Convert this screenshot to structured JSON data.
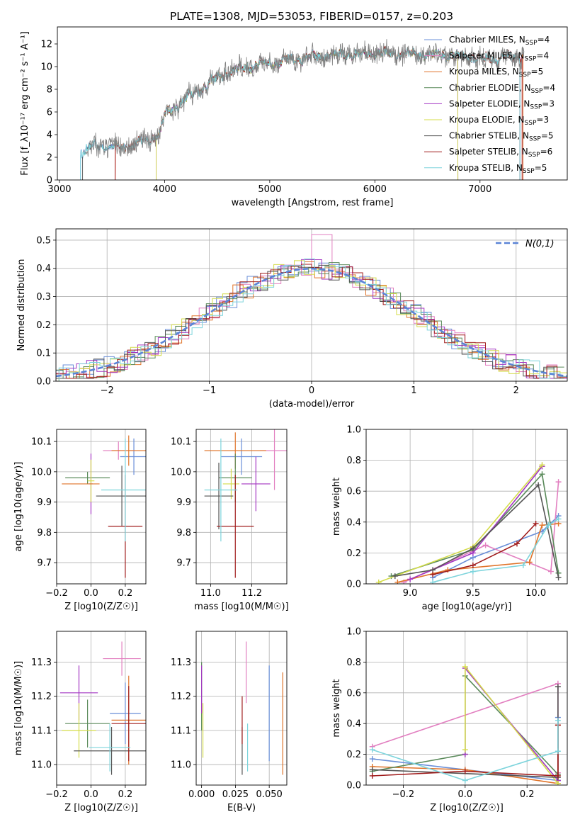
{
  "figure": {
    "title": "PLATE=1308, MJD=53053, FIBERID=0157, z=0.203"
  },
  "colors": {
    "Chabrier MILES": "#6a8fd8",
    "Salpeter MILES": "#e27fc0",
    "Kroupa MILES": "#e0742a",
    "Chabrier ELODIE": "#5a8a5a",
    "Salpeter ELODIE": "#a336c2",
    "Kroupa ELODIE": "#d4dc4a",
    "Chabrier STELIB": "#555555",
    "Salpeter STELIB": "#a01c1c",
    "Kroupa STELIB": "#7dd4dc",
    "data": "#808080"
  },
  "chart_data": [
    {
      "id": "spectrum",
      "type": "line",
      "xlabel": "wavelength [Angstrom, rest frame]",
      "ylabel": "Flux [f_λ10⁻¹⁷ erg cm⁻² s⁻¹ A⁻¹]",
      "xlim": [
        2980,
        7830
      ],
      "ylim": [
        0,
        13.5
      ],
      "xticks": [
        3000,
        4000,
        5000,
        6000,
        7000
      ],
      "yticks": [
        0,
        2,
        4,
        6,
        8,
        10,
        12
      ],
      "grid": false,
      "legend_position": "right",
      "legend": [
        {
          "label": "Chabrier MILES, N",
          "sub": "SSP",
          "tail": "=4"
        },
        {
          "label": "Salpeter MILES, N",
          "sub": "SSP",
          "tail": "=4"
        },
        {
          "label": "Kroupa MILES, N",
          "sub": "SSP",
          "tail": "=5"
        },
        {
          "label": "Chabrier ELODIE, N",
          "sub": "SSP",
          "tail": "=4"
        },
        {
          "label": "Salpeter ELODIE, N",
          "sub": "SSP",
          "tail": "=3"
        },
        {
          "label": "Kroupa ELODIE, N",
          "sub": "SSP",
          "tail": "=3"
        },
        {
          "label": "Chabrier STELIB, N",
          "sub": "SSP",
          "tail": "=5"
        },
        {
          "label": "Salpeter STELIB, N",
          "sub": "SSP",
          "tail": "=6"
        },
        {
          "label": "Kroupa STELIB, N",
          "sub": "SSP",
          "tail": "=5"
        }
      ],
      "model_ranges": [
        [
          3200,
          7380
        ],
        [
          3530,
          7410
        ],
        [
          3530,
          7410
        ],
        [
          3920,
          6790
        ],
        [
          3920,
          6790
        ],
        [
          3920,
          6790
        ],
        [
          3220,
          7380
        ],
        [
          3530,
          7400
        ],
        [
          3200,
          7380
        ]
      ],
      "continuum": {
        "x": [
          3200,
          3300,
          3400,
          3600,
          3800,
          3950,
          4000,
          4200,
          4400,
          4600,
          4800,
          5000,
          5200,
          5500,
          5800,
          6000,
          6300,
          6600,
          7000,
          7400
        ],
        "y": [
          2.4,
          2.9,
          3.0,
          2.9,
          3.4,
          4.0,
          5.7,
          7.2,
          8.4,
          9.5,
          10.0,
          10.3,
          10.6,
          10.9,
          11.1,
          11.2,
          11.1,
          11.1,
          10.7,
          10.8
        ]
      }
    },
    {
      "id": "residuals",
      "type": "histogram",
      "xlabel": "(data-model)/error",
      "ylabel": "Normed distribution",
      "xlim": [
        -2.5,
        2.5
      ],
      "ylim": [
        0,
        0.54
      ],
      "xticks": [
        -2,
        -1,
        0,
        1,
        2
      ],
      "yticks": [
        0.0,
        0.1,
        0.2,
        0.3,
        0.4,
        0.5
      ],
      "grid": true,
      "bin_width": 0.1,
      "reference_label": "N(0,1)",
      "peaks": [
        0.52,
        0.455,
        0.45,
        0.42
      ]
    },
    {
      "id": "age_vs_Z",
      "type": "errorbar",
      "xlabel": "Z [log10(Z/Z☉)]",
      "ylabel": "age [log10(age/yr)]",
      "xlim": [
        -0.2,
        0.32
      ],
      "ylim": [
        9.63,
        10.14
      ],
      "xticks": [
        -0.2,
        0.0,
        0.2
      ],
      "yticks": [
        9.7,
        9.8,
        9.9,
        10.0,
        10.1
      ],
      "grid": true,
      "points": [
        {
          "series": "Chabrier MILES",
          "x": 0.25,
          "xerr": 0.08,
          "y": 10.05,
          "yerr": 0.06
        },
        {
          "series": "Salpeter MILES",
          "x": 0.16,
          "xerr": 0.09,
          "y": 10.07,
          "yerr": 0.03
        },
        {
          "series": "Kroupa MILES",
          "x": 0.22,
          "xerr": 0.1,
          "y": 10.07,
          "yerr": 0.05
        },
        {
          "series": "Chabrier ELODIE",
          "x": -0.02,
          "xerr": 0.13,
          "y": 9.98,
          "yerr": 0.02
        },
        {
          "series": "Salpeter ELODIE",
          "x": 0.0,
          "xerr": 0.01,
          "y": 9.96,
          "yerr": 0.1
        },
        {
          "series": "Kroupa ELODIE",
          "x": 0.0,
          "xerr": 0.02,
          "y": 9.97,
          "yerr": 0.07
        },
        {
          "series": "Chabrier STELIB",
          "x": 0.18,
          "xerr": 0.15,
          "y": 9.92,
          "yerr": 0.1
        },
        {
          "series": "Salpeter STELIB",
          "x": 0.2,
          "xerr": 0.1,
          "y": 9.82,
          "yerr": 0.17
        },
        {
          "series": "Kroupa STELIB",
          "x": 0.2,
          "xerr": 0.14,
          "y": 9.94,
          "yerr": 0.17
        },
        {
          "series": "Kroupa MILES",
          "x": -0.06,
          "xerr": 0.11,
          "y": 9.96,
          "yerr": 0.0
        }
      ]
    },
    {
      "id": "age_vs_mass",
      "type": "errorbar",
      "xlabel": "mass [log10(M/M☉)]",
      "ylabel": "",
      "xlim": [
        10.93,
        11.37
      ],
      "ylim": [
        9.63,
        10.14
      ],
      "xticks": [
        11.0,
        11.2
      ],
      "yticks": [
        9.7,
        9.8,
        9.9,
        10.0,
        10.1
      ],
      "grid": true,
      "points": [
        {
          "series": "Chabrier MILES",
          "x": 11.15,
          "xerr": 0.1,
          "y": 10.05,
          "yerr": 0.06
        },
        {
          "series": "Salpeter MILES",
          "x": 11.31,
          "xerr": 0.07,
          "y": 10.07,
          "yerr": 0.13
        },
        {
          "series": "Kroupa MILES",
          "x": 11.12,
          "xerr": 0.15,
          "y": 10.07,
          "yerr": 0.06
        },
        {
          "series": "Chabrier ELODIE",
          "x": 11.12,
          "xerr": 0.08,
          "y": 9.98,
          "yerr": 0.08
        },
        {
          "series": "Salpeter ELODIE",
          "x": 11.22,
          "xerr": 0.07,
          "y": 9.96,
          "yerr": 0.09
        },
        {
          "series": "Kroupa ELODIE",
          "x": 11.1,
          "xerr": 0.04,
          "y": 9.96,
          "yerr": 0.05
        },
        {
          "series": "Chabrier STELIB",
          "x": 11.04,
          "xerr": 0.07,
          "y": 9.92,
          "yerr": 0.11
        },
        {
          "series": "Salpeter STELIB",
          "x": 11.12,
          "xerr": 0.09,
          "y": 9.82,
          "yerr": 0.17
        },
        {
          "series": "Kroupa STELIB",
          "x": 11.05,
          "xerr": 0.08,
          "y": 9.94,
          "yerr": 0.17
        }
      ]
    },
    {
      "id": "mass_weight_vs_age",
      "type": "line",
      "xlabel": "age [log10(age/yr)]",
      "ylabel": "mass weight",
      "xlim": [
        8.65,
        10.25
      ],
      "ylim": [
        0,
        1.0
      ],
      "xticks": [
        9.0,
        9.5,
        10.0
      ],
      "yticks": [
        0.0,
        0.2,
        0.4,
        0.6,
        0.8,
        1.0
      ],
      "grid": true,
      "series": [
        {
          "name": "Chabrier MILES",
          "x": [
            9.18,
            9.5,
            10.05,
            10.18
          ],
          "y": [
            0.04,
            0.17,
            0.34,
            0.44
          ]
        },
        {
          "name": "Salpeter MILES",
          "x": [
            8.95,
            9.6,
            10.12,
            10.18
          ],
          "y": [
            0.01,
            0.25,
            0.08,
            0.66
          ]
        },
        {
          "name": "Kroupa MILES",
          "x": [
            8.9,
            9.3,
            9.95,
            10.05,
            10.18
          ],
          "y": [
            0.01,
            0.09,
            0.14,
            0.38,
            0.39
          ]
        },
        {
          "name": "Chabrier ELODIE",
          "x": [
            8.85,
            9.5,
            10.05,
            10.18
          ],
          "y": [
            0.05,
            0.22,
            0.71,
            0.07
          ]
        },
        {
          "name": "Salpeter ELODIE",
          "x": [
            9.0,
            9.5,
            10.05
          ],
          "y": [
            0.03,
            0.2,
            0.76
          ]
        },
        {
          "name": "Kroupa ELODIE",
          "x": [
            8.75,
            9.5,
            10.05
          ],
          "y": [
            0.01,
            0.24,
            0.77
          ]
        },
        {
          "name": "Chabrier STELIB",
          "x": [
            8.88,
            9.18,
            9.5,
            10.02,
            10.18
          ],
          "y": [
            0.05,
            0.09,
            0.23,
            0.64,
            0.04
          ]
        },
        {
          "name": "Salpeter STELIB",
          "x": [
            9.18,
            9.5,
            9.85,
            10.0
          ],
          "y": [
            0.06,
            0.12,
            0.26,
            0.39
          ]
        },
        {
          "name": "Kroupa STELIB",
          "x": [
            9.18,
            9.5,
            9.9,
            10.1,
            10.18
          ],
          "y": [
            0.01,
            0.08,
            0.12,
            0.38,
            0.42
          ]
        }
      ]
    },
    {
      "id": "mass_vs_Z",
      "type": "errorbar",
      "xlabel": "Z [log10(Z/Z☉)]",
      "ylabel": "mass [log10(M/M☉)]",
      "xlim": [
        -0.2,
        0.32
      ],
      "ylim": [
        10.94,
        11.39
      ],
      "xticks": [
        -0.2,
        0.0,
        0.2
      ],
      "yticks": [
        11.0,
        11.1,
        11.2,
        11.3
      ],
      "grid": true,
      "points": [
        {
          "series": "Chabrier MILES",
          "x": 0.2,
          "xerr": 0.09,
          "y": 11.15,
          "yerr": 0.09
        },
        {
          "series": "Salpeter MILES",
          "x": 0.18,
          "xerr": 0.11,
          "y": 11.31,
          "yerr": 0.05
        },
        {
          "series": "Kroupa MILES",
          "x": 0.22,
          "xerr": 0.1,
          "y": 11.13,
          "yerr": 0.13
        },
        {
          "series": "Chabrier ELODIE",
          "x": -0.02,
          "xerr": 0.13,
          "y": 11.12,
          "yerr": 0.07
        },
        {
          "series": "Salpeter ELODIE",
          "x": -0.07,
          "xerr": 0.11,
          "y": 11.21,
          "yerr": 0.08
        },
        {
          "series": "Kroupa ELODIE",
          "x": -0.07,
          "xerr": 0.1,
          "y": 11.1,
          "yerr": 0.08
        },
        {
          "series": "Chabrier STELIB",
          "x": 0.12,
          "xerr": 0.22,
          "y": 11.04,
          "yerr": 0.07
        },
        {
          "series": "Salpeter STELIB",
          "x": 0.22,
          "xerr": 0.1,
          "y": 11.12,
          "yerr": 0.11
        },
        {
          "series": "Kroupa STELIB",
          "x": 0.11,
          "xerr": 0.12,
          "y": 11.05,
          "yerr": 0.07
        }
      ]
    },
    {
      "id": "mass_vs_ebv",
      "type": "errorbar",
      "xlabel": "E(B-V)",
      "ylabel": "",
      "xlim": [
        -0.004,
        0.063
      ],
      "ylim": [
        10.94,
        11.39
      ],
      "xticks": [
        0.0,
        0.025,
        0.05
      ],
      "yticks": [
        11.0,
        11.1,
        11.2,
        11.3
      ],
      "grid": true,
      "points": [
        {
          "series": "Chabrier MILES",
          "x": 0.05,
          "xerr": 0,
          "y": 11.15,
          "yerr": 0.14
        },
        {
          "series": "Salpeter MILES",
          "x": 0.033,
          "xerr": 0,
          "y": 11.27,
          "yerr": 0.09
        },
        {
          "series": "Kroupa MILES",
          "x": 0.06,
          "xerr": 0,
          "y": 11.12,
          "yerr": 0.15
        },
        {
          "series": "Chabrier ELODIE",
          "x": 0.0,
          "xerr": 0,
          "y": 11.2,
          "yerr": 0.1
        },
        {
          "series": "Salpeter ELODIE",
          "x": 0.0,
          "xerr": 0,
          "y": 11.22,
          "yerr": 0.07
        },
        {
          "series": "Kroupa ELODIE",
          "x": 0.001,
          "xerr": 0,
          "y": 11.1,
          "yerr": 0.08
        },
        {
          "series": "Chabrier STELIB",
          "x": 0.03,
          "xerr": 0,
          "y": 11.04,
          "yerr": 0.07
        },
        {
          "series": "Salpeter STELIB",
          "x": 0.03,
          "xerr": 0,
          "y": 11.13,
          "yerr": 0.07
        },
        {
          "series": "Kroupa STELIB",
          "x": 0.034,
          "xerr": 0,
          "y": 11.05,
          "yerr": 0.07
        }
      ]
    },
    {
      "id": "mass_weight_vs_Z",
      "type": "line",
      "xlabel": "Z [log10(Z/Z☉)]",
      "ylabel": "mass weight",
      "xlim": [
        -0.32,
        0.33
      ],
      "ylim": [
        0,
        1.0
      ],
      "xticks": [
        -0.2,
        0.0,
        0.2
      ],
      "yticks": [
        0.0,
        0.2,
        0.4,
        0.6,
        0.8,
        1.0
      ],
      "grid": true,
      "series": [
        {
          "name": "Chabrier MILES",
          "x": [
            -0.3,
            0.0,
            0.3,
            0.3
          ],
          "y": [
            0.17,
            0.1,
            0.03,
            0.44
          ]
        },
        {
          "name": "Salpeter MILES",
          "x": [
            -0.3,
            0.3,
            0.3
          ],
          "y": [
            0.25,
            0.66,
            0.08
          ]
        },
        {
          "name": "Kroupa MILES",
          "x": [
            -0.3,
            0.0,
            0.3,
            0.3
          ],
          "y": [
            0.12,
            0.1,
            0.01,
            0.39
          ]
        },
        {
          "name": "Chabrier ELODIE",
          "x": [
            -0.3,
            0.0,
            0.0,
            0.3
          ],
          "y": [
            0.09,
            0.2,
            0.71,
            0.07
          ]
        },
        {
          "name": "Salpeter ELODIE",
          "x": [
            0.0,
            0.0,
            0.3
          ],
          "y": [
            0.2,
            0.76,
            0.03
          ]
        },
        {
          "name": "Kroupa ELODIE",
          "x": [
            0.0,
            0.0,
            0.3
          ],
          "y": [
            0.23,
            0.77,
            0.01
          ]
        },
        {
          "name": "Chabrier STELIB",
          "x": [
            -0.3,
            0.3,
            0.3
          ],
          "y": [
            0.1,
            0.05,
            0.64
          ]
        },
        {
          "name": "Salpeter STELIB",
          "x": [
            -0.3,
            0.0,
            0.3,
            0.3
          ],
          "y": [
            0.06,
            0.09,
            0.06,
            0.39
          ]
        },
        {
          "name": "Kroupa STELIB",
          "x": [
            -0.3,
            0.0,
            0.3,
            0.3
          ],
          "y": [
            0.23,
            0.03,
            0.22,
            0.42
          ]
        }
      ]
    }
  ]
}
